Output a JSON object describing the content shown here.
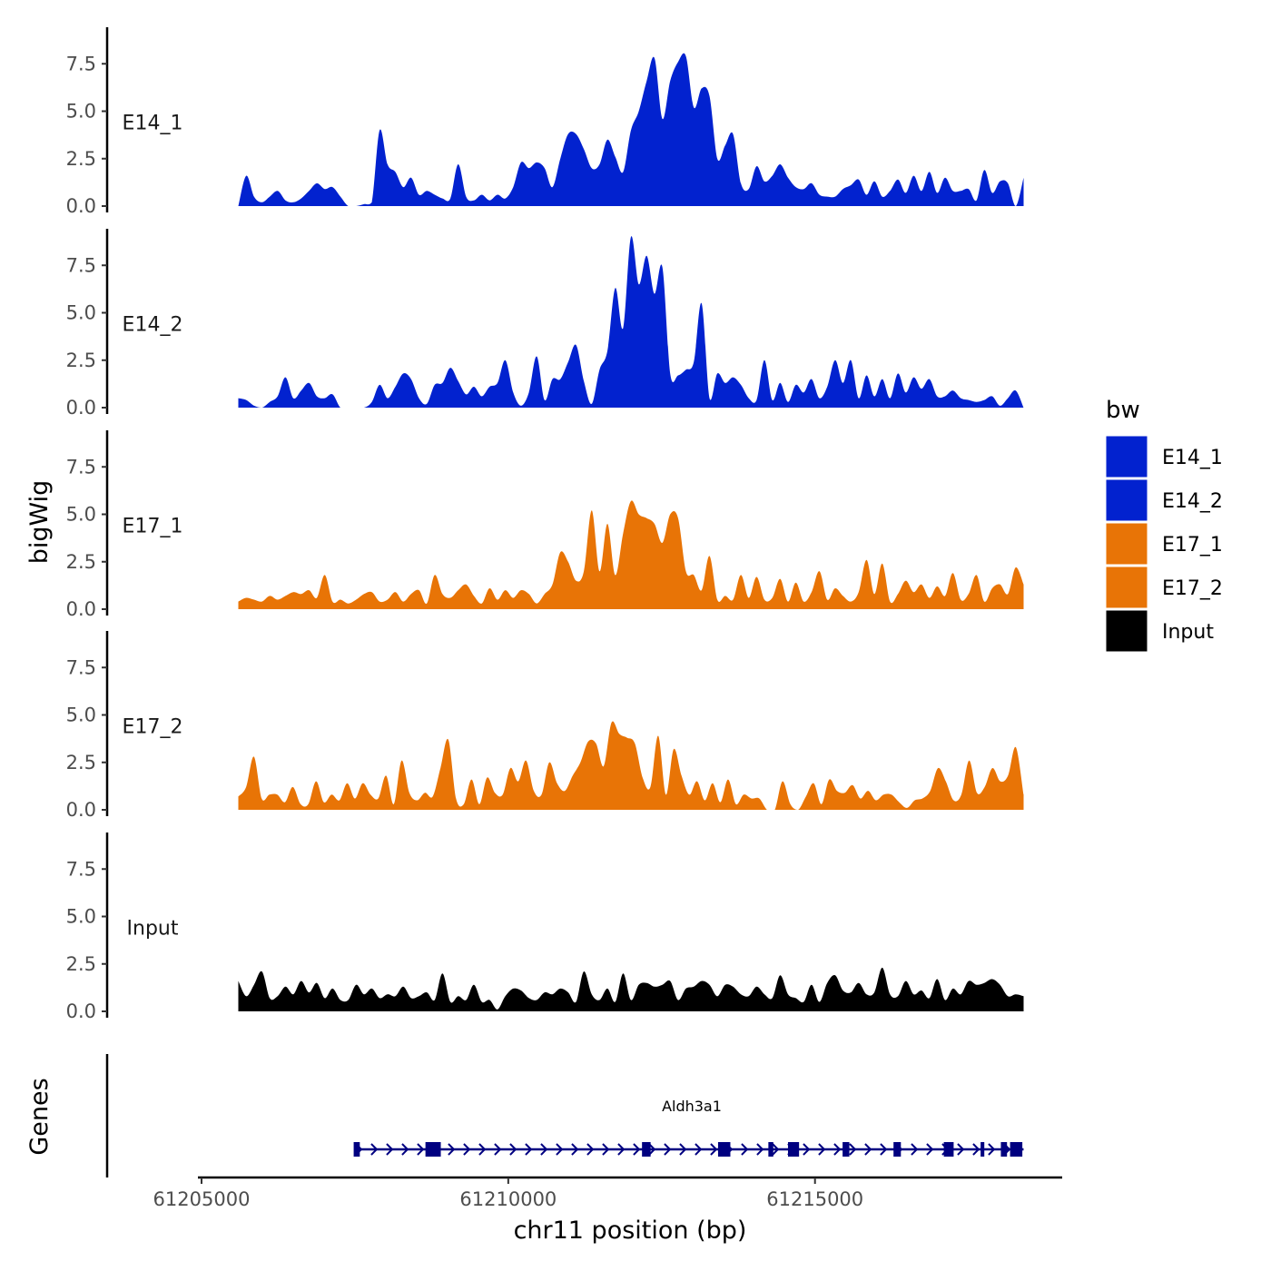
{
  "chart_data": {
    "type": "area",
    "ylabel": "bigWig",
    "xlabel": "chr11 position (bp)",
    "genes_label": "Genes",
    "x_range": [
      61205600,
      61218400
    ],
    "xlim": [
      61205000,
      61219000
    ],
    "x_ticks": [
      61205000,
      61210000,
      61215000
    ],
    "x_tick_labels": [
      "61205000",
      "61210000",
      "61215000"
    ],
    "ylim": [
      0,
      9.3
    ],
    "y_ticks": [
      0,
      2.5,
      5,
      7.5
    ],
    "y_tick_labels": [
      "0.0",
      "2.5",
      "5.0",
      "7.5"
    ],
    "legend": {
      "title": "bw",
      "position": "right",
      "items": [
        {
          "label": "E14_1",
          "color": "#0222CF"
        },
        {
          "label": "E14_2",
          "color": "#0222CF"
        },
        {
          "label": "E17_1",
          "color": "#E87406"
        },
        {
          "label": "E17_2",
          "color": "#E87406"
        },
        {
          "label": "Input",
          "color": "#000000"
        }
      ]
    },
    "series": [
      {
        "name": "E14_1",
        "color": "#0222CF",
        "values": [
          0,
          1.6,
          0.5,
          0.2,
          0.5,
          0.8,
          0.3,
          0.2,
          0.4,
          0.8,
          1.2,
          0.9,
          1.0,
          0.5,
          0,
          0,
          0.1,
          0.2,
          4.0,
          2.2,
          1.8,
          1.0,
          1.5,
          0.6,
          0.8,
          0.6,
          0.4,
          0.4,
          2.2,
          0.5,
          0.3,
          0.6,
          0.3,
          0.6,
          0.4,
          1.0,
          2.3,
          2.0,
          2.3,
          2.0,
          1.0,
          2.5,
          3.8,
          3.8,
          3.0,
          2.0,
          2.2,
          3.5,
          2.6,
          1.8,
          4.0,
          5.0,
          6.6,
          7.8,
          4.6,
          6.6,
          7.6,
          7.9,
          5.2,
          6.2,
          5.8,
          2.5,
          3.2,
          3.8,
          1.2,
          0.9,
          2.1,
          1.3,
          1.6,
          2.2,
          1.5,
          1.0,
          0.9,
          1.2,
          0.6,
          0.5,
          0.5,
          0.9,
          1.1,
          1.4,
          0.6,
          1.3,
          0.5,
          0.8,
          1.4,
          0.7,
          1.6,
          0.8,
          1.8,
          0.7,
          1.5,
          0.8,
          0.8,
          0.9,
          0.3,
          1.9,
          0.7,
          1.3,
          1.2,
          0,
          1.5
        ]
      },
      {
        "name": "E14_2",
        "color": "#0222CF",
        "values": [
          0.5,
          0.4,
          0.1,
          0,
          0.3,
          0.6,
          1.6,
          0.5,
          0.9,
          1.3,
          0.6,
          0.5,
          0.7,
          0,
          0,
          0,
          0,
          0.3,
          1.2,
          0.5,
          1.1,
          1.8,
          1.5,
          0.5,
          0.2,
          1.2,
          1.3,
          2.1,
          1.4,
          0.7,
          1.1,
          0.6,
          1.1,
          1.3,
          2.5,
          0.8,
          0.1,
          0.8,
          2.7,
          0.4,
          1.5,
          1.5,
          2.4,
          3.3,
          1.4,
          0.2,
          2.0,
          3.0,
          6.3,
          4.2,
          9.0,
          6.5,
          8.0,
          6.0,
          7.4,
          1.8,
          1.7,
          2.0,
          2.4,
          5.5,
          0.5,
          1.8,
          1.3,
          1.6,
          1.2,
          0.5,
          0.4,
          2.5,
          0.4,
          1.3,
          0.3,
          1.2,
          0.8,
          1.5,
          0.5,
          1.1,
          2.5,
          1.3,
          2.5,
          0.5,
          1.7,
          0.6,
          1.5,
          0.5,
          1.8,
          0.8,
          1.6,
          1.0,
          1.5,
          0.6,
          0.6,
          0.9,
          0.5,
          0.4,
          0.3,
          0.4,
          0.6,
          0.1,
          0.5,
          0.9,
          0
        ]
      },
      {
        "name": "E17_1",
        "color": "#E87406",
        "values": [
          0.4,
          0.6,
          0.5,
          0.4,
          0.7,
          0.5,
          0.7,
          0.9,
          0.8,
          1.0,
          0.6,
          1.8,
          0.4,
          0.5,
          0.3,
          0.5,
          0.8,
          0.9,
          0.4,
          0.5,
          0.9,
          0.4,
          0.8,
          1.0,
          0.3,
          1.8,
          0.8,
          0.6,
          1.0,
          1.3,
          0.7,
          0.3,
          1.1,
          0.5,
          1.0,
          0.6,
          1.0,
          0.8,
          0.3,
          0.8,
          1.3,
          3.0,
          2.5,
          1.5,
          2.0,
          5.2,
          2.0,
          4.5,
          1.8,
          4.0,
          5.7,
          5.0,
          4.8,
          4.5,
          3.5,
          5.0,
          4.8,
          2.0,
          1.8,
          1.0,
          2.8,
          0.5,
          0.7,
          0.5,
          1.8,
          0.6,
          1.7,
          0.5,
          0.6,
          1.6,
          0.4,
          1.4,
          0.4,
          0.9,
          2.0,
          0.5,
          1.1,
          0.7,
          0.4,
          0.9,
          2.6,
          0.8,
          2.4,
          0.4,
          0.8,
          1.5,
          0.9,
          1.3,
          0.6,
          1.2,
          0.7,
          1.9,
          0.5,
          0.8,
          1.8,
          0.4,
          1.1,
          1.3,
          0.8,
          2.2,
          1.3
        ]
      },
      {
        "name": "E17_2",
        "color": "#E87406",
        "values": [
          0.7,
          1.2,
          2.8,
          0.6,
          0.8,
          0.8,
          0.4,
          1.2,
          0.3,
          0.3,
          1.5,
          0.4,
          0.8,
          0.5,
          1.4,
          0.6,
          1.4,
          0.8,
          0.6,
          1.8,
          0.3,
          2.6,
          0.9,
          0.5,
          0.9,
          0.7,
          2.2,
          3.7,
          0.6,
          0.3,
          1.6,
          0.3,
          1.7,
          0.9,
          0.8,
          2.2,
          1.5,
          2.6,
          1.0,
          0.8,
          2.5,
          1.4,
          1.0,
          1.8,
          2.5,
          3.6,
          3.5,
          2.3,
          4.6,
          4.0,
          3.8,
          3.5,
          1.7,
          1.2,
          3.9,
          0.8,
          3.2,
          1.8,
          0.8,
          1.5,
          0.5,
          1.4,
          0.4,
          1.6,
          0.3,
          0.8,
          0.6,
          0.6,
          0,
          0,
          1.5,
          0.3,
          0,
          0.7,
          1.4,
          0.3,
          1.6,
          1.0,
          0.9,
          1.3,
          0.6,
          1.0,
          0.5,
          0.8,
          0.8,
          0.4,
          0.1,
          0.5,
          0.6,
          1.0,
          2.2,
          1.5,
          0.5,
          0.8,
          2.6,
          0.9,
          1.2,
          2.2,
          1.5,
          1.8,
          3.3,
          0.8
        ]
      },
      {
        "name": "Input",
        "color": "#000000",
        "values": [
          1.6,
          0.8,
          1.4,
          2.1,
          0.7,
          0.8,
          1.3,
          0.9,
          1.6,
          1.0,
          1.5,
          0.7,
          1.2,
          0.6,
          0.6,
          1.4,
          0.9,
          1.2,
          0.7,
          0.9,
          0.8,
          1.3,
          0.7,
          0.8,
          1.0,
          0.6,
          2.0,
          0.5,
          0.8,
          0.6,
          1.4,
          0.5,
          0.6,
          0.1,
          0.8,
          1.2,
          1.1,
          0.7,
          0.6,
          1.0,
          0.9,
          1.2,
          1.0,
          0.5,
          2.1,
          0.9,
          0.6,
          1.2,
          0.5,
          2.0,
          0.6,
          1.4,
          1.5,
          1.3,
          1.4,
          1.6,
          0.6,
          1.2,
          1.3,
          1.6,
          1.4,
          0.8,
          1.4,
          1.3,
          0.9,
          0.8,
          1.3,
          0.9,
          0.7,
          1.9,
          0.9,
          0.7,
          0.5,
          1.4,
          0.5,
          1.5,
          1.9,
          1.1,
          1.0,
          1.5,
          0.9,
          1.0,
          2.3,
          0.9,
          0.8,
          1.6,
          0.9,
          1.1,
          0.7,
          1.7,
          0.6,
          1.2,
          0.9,
          1.6,
          1.4,
          1.5,
          1.7,
          1.4,
          0.8,
          0.9,
          0.8
        ]
      }
    ],
    "gene_track": {
      "label": "Aldh3a1",
      "color": "#000080",
      "line_range": [
        61207500,
        61218400
      ],
      "exons": [
        {
          "start": 61207480,
          "end": 61207580
        },
        {
          "start": 61208650,
          "end": 61208900
        },
        {
          "start": 61212180,
          "end": 61212320
        },
        {
          "start": 61213420,
          "end": 61213620
        },
        {
          "start": 61214240,
          "end": 61214320
        },
        {
          "start": 61214560,
          "end": 61214740
        },
        {
          "start": 61215450,
          "end": 61215560
        },
        {
          "start": 61216280,
          "end": 61216400
        },
        {
          "start": 61217100,
          "end": 61217260
        },
        {
          "start": 61217700,
          "end": 61217760
        },
        {
          "start": 61218030,
          "end": 61218130
        },
        {
          "start": 61218180,
          "end": 61218380
        }
      ]
    }
  }
}
